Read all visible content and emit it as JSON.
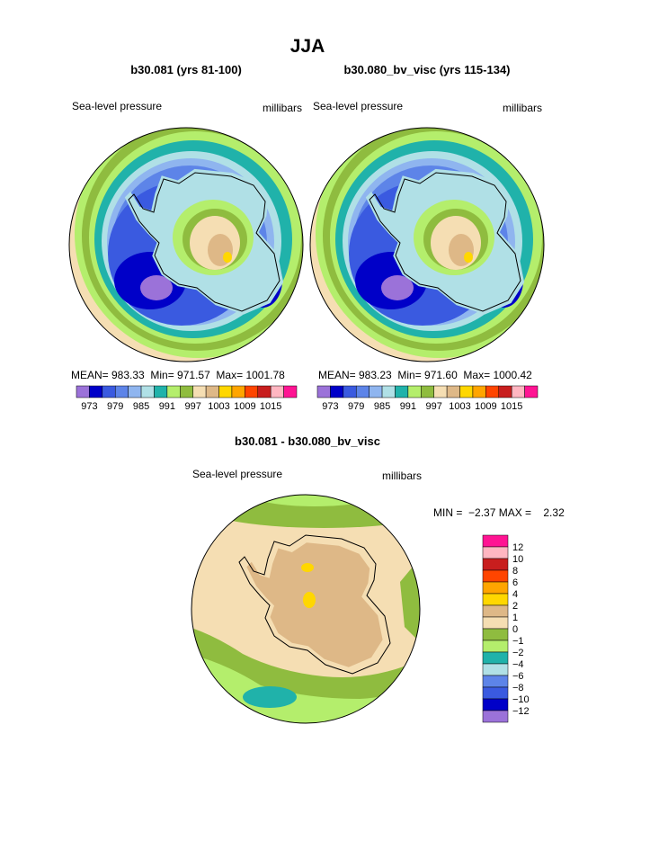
{
  "title": "JJA",
  "panels": [
    {
      "title": "b30.081 (yrs 81-100)",
      "variable": "Sea-level pressure",
      "units": "millibars",
      "stats": "MEAN= 983.33  Min= 971.57  Max= 1001.78"
    },
    {
      "title": "b30.080_bv_visc (yrs 115-134)",
      "variable": "Sea-level pressure",
      "units": "millibars",
      "stats": "MEAN= 983.23  Min= 971.60  Max= 1000.42"
    }
  ],
  "colorbar": {
    "labels": [
      "973",
      "979",
      "985",
      "991",
      "997",
      "1003",
      "1009",
      "1015"
    ],
    "colors": [
      "#9b72d9",
      "#0000c8",
      "#3a5ae0",
      "#5d84e8",
      "#8fb5ef",
      "#b0e0e6",
      "#20b2aa",
      "#b4ee6c",
      "#8fbc3f",
      "#f5deb3",
      "#deb887",
      "#ffd700",
      "#ffa500",
      "#ff4500",
      "#c81e1e",
      "#ffb6c1",
      "#ff1493"
    ]
  },
  "difference": {
    "title": "b30.081 - b30.080_bv_visc",
    "variable": "Sea-level pressure",
    "units": "millibars",
    "stats": "MIN =  −2.37 MAX =    2.32",
    "colorbar": {
      "labels": [
        "12",
        "10",
        "8",
        "6",
        "4",
        "2",
        "1",
        "0",
        "−1",
        "−2",
        "−4",
        "−6",
        "−8",
        "−10",
        "−12"
      ],
      "colors": [
        "#ff1493",
        "#ffb6c1",
        "#c81e1e",
        "#ff4500",
        "#ffa500",
        "#ffd700",
        "#deb887",
        "#f5deb3",
        "#8fbc3f",
        "#b4ee6c",
        "#20b2aa",
        "#b0e0e6",
        "#5d84e8",
        "#3a5ae0",
        "#0000c8",
        "#9b72d9"
      ]
    }
  }
}
